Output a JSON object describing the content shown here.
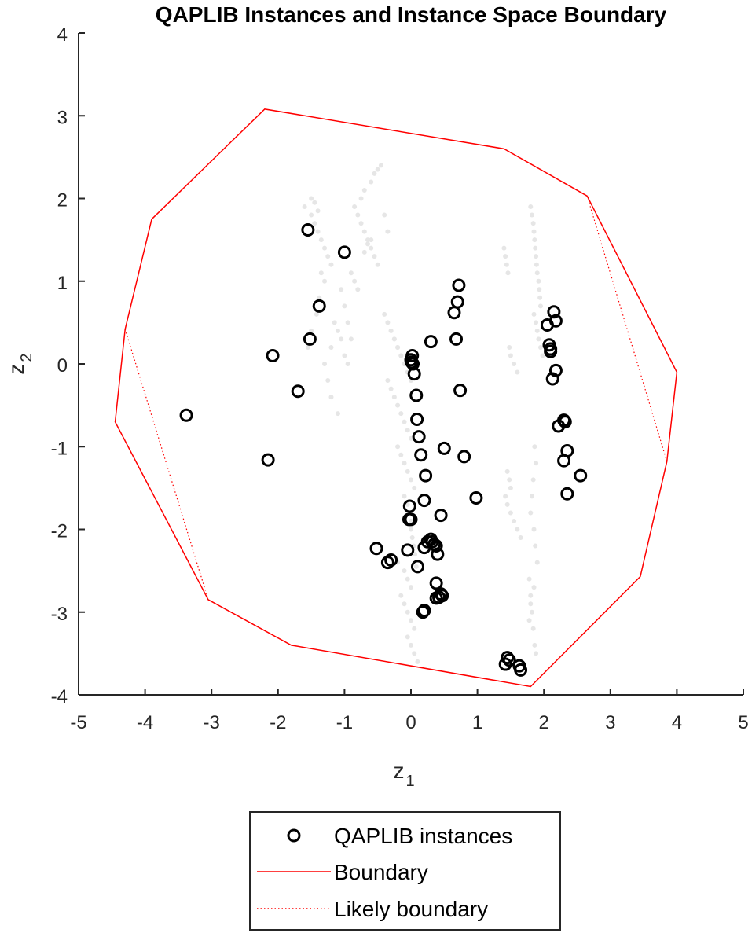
{
  "chart_data": {
    "type": "scatter",
    "title": "QAPLIB Instances and Instance Space Boundary",
    "xlabel": "z",
    "xlabel_sub": "1",
    "ylabel": "z",
    "ylabel_sub": "2",
    "xlim": [
      -5,
      5
    ],
    "ylim": [
      -4,
      4
    ],
    "xticks": [
      "-5",
      "-4",
      "-3",
      "-2",
      "-1",
      "0",
      "1",
      "2",
      "3",
      "4",
      "5"
    ],
    "yticks": [
      "-4",
      "-3",
      "-2",
      "-1",
      "0",
      "1",
      "2",
      "3",
      "4"
    ],
    "grid": false,
    "legend_position": "bottom-outside",
    "legend": [
      {
        "label": "QAPLIB instances",
        "marker": "circle",
        "color": "#000000"
      },
      {
        "label": "Boundary",
        "style": "solid",
        "color": "#ff0000"
      },
      {
        "label": "Likely boundary",
        "style": "dotted",
        "color": "#ff0000"
      }
    ],
    "background_points": {
      "color": "#e6e6e6",
      "x": [
        -1.6,
        -1.5,
        -1.45,
        -1.4,
        -1.35,
        -1.3,
        -1.25,
        -1.2,
        -1.4,
        -1.45,
        -1.5,
        -1.35,
        -1.3,
        -1.38,
        -1.42,
        -1.5,
        -1.55,
        -1.3,
        -1.25,
        -1.2,
        -1.1,
        -1.05,
        -1.0,
        -0.95,
        -0.9,
        -0.85,
        -0.8,
        -0.75,
        -0.7,
        -0.65,
        -0.6,
        -0.55,
        -0.5,
        -0.9,
        -0.85,
        -0.8,
        -0.75,
        -0.7,
        -0.6,
        -0.55,
        -0.5,
        -0.45,
        -0.4,
        -0.35,
        -0.6,
        -0.65,
        -0.7,
        -1.15,
        -1.1,
        -1.05,
        -1.2,
        -1.0,
        -0.95,
        -0.4,
        -0.35,
        -0.3,
        -0.25,
        -0.2,
        -0.15,
        -0.1,
        -0.05,
        0.0,
        -0.3,
        -0.25,
        -0.2,
        -0.15,
        -0.1,
        -0.05,
        -0.35,
        -0.3,
        -0.25,
        -0.2,
        -0.15,
        -0.1,
        -0.05,
        0.0,
        -0.2,
        -0.15,
        -0.1,
        -0.05,
        0.0,
        0.05,
        -0.1,
        -0.05,
        0.0,
        -0.2,
        -0.1,
        -0.05,
        0.0,
        -0.15,
        -0.1,
        -0.05,
        0.0,
        0.05,
        -0.05,
        0.0,
        0.05,
        0.1,
        0.0,
        0.0,
        0.02,
        0.04,
        0.06,
        0.08,
        1.4,
        1.42,
        1.44,
        1.46,
        1.48,
        1.5,
        1.55,
        1.6,
        1.45,
        1.48,
        1.5,
        1.42,
        1.45,
        1.5,
        1.55,
        1.6,
        1.65,
        1.8,
        1.82,
        1.84,
        1.85,
        1.86,
        1.87,
        1.88,
        1.89,
        1.9,
        1.92,
        1.93,
        1.94,
        1.95,
        1.85,
        1.88,
        1.9,
        1.92,
        1.95,
        1.98,
        1.86,
        1.88,
        1.84,
        1.82,
        1.8,
        1.85,
        1.87,
        1.9,
        1.78,
        1.8,
        1.82,
        1.84,
        1.86,
        1.88,
        1.85,
        1.8,
        1.78
      ],
      "y": [
        1.9,
        1.8,
        1.7,
        1.6,
        1.5,
        1.4,
        1.3,
        1.2,
        1.85,
        1.95,
        2.0,
        1.1,
        1.0,
        0.8,
        0.6,
        0.4,
        0.2,
        0.0,
        -0.2,
        -0.4,
        -0.6,
        0.9,
        0.7,
        0.5,
        0.3,
        1.9,
        1.8,
        1.7,
        1.6,
        1.5,
        1.4,
        1.3,
        1.2,
        1.1,
        1.0,
        0.9,
        2.0,
        2.1,
        2.2,
        2.3,
        2.35,
        2.4,
        1.8,
        1.6,
        1.5,
        1.45,
        1.35,
        0.5,
        0.4,
        0.3,
        0.2,
        0.1,
        0.0,
        0.6,
        0.5,
        0.4,
        0.3,
        0.2,
        0.1,
        0.0,
        -0.1,
        -0.2,
        0.4,
        0.3,
        0.2,
        0.1,
        0.0,
        -0.1,
        -0.2,
        -0.3,
        -0.4,
        -0.5,
        -0.6,
        -0.7,
        -0.8,
        -0.9,
        -1.0,
        -1.1,
        -1.2,
        -1.3,
        -1.4,
        -1.5,
        -1.6,
        -1.7,
        -1.8,
        -2.4,
        -2.5,
        -2.6,
        -2.7,
        -2.8,
        -2.9,
        -3.0,
        -3.1,
        -3.2,
        -3.3,
        -3.4,
        -3.5,
        -3.6,
        -1.9,
        -2.0,
        -2.1,
        -2.2,
        -2.3,
        -2.45,
        1.4,
        1.3,
        1.2,
        1.1,
        0.2,
        0.1,
        0.0,
        -0.1,
        -1.3,
        -1.4,
        -1.5,
        -1.6,
        -1.7,
        -1.8,
        -1.9,
        -2.0,
        -2.1,
        1.9,
        1.8,
        1.7,
        1.6,
        1.5,
        1.4,
        1.3,
        1.2,
        1.1,
        1.0,
        0.9,
        0.8,
        0.7,
        0.6,
        0.5,
        0.4,
        0.3,
        0.2,
        0.1,
        -1.0,
        -1.2,
        -1.4,
        -1.6,
        -1.8,
        -2.0,
        -2.2,
        -2.4,
        -2.6,
        -2.8,
        -3.0,
        -3.2,
        -3.4,
        -3.5,
        -2.7,
        -2.9,
        -3.1
      ]
    },
    "series": [
      {
        "name": "QAPLIB instances",
        "x": [
          -1.55,
          -1.0,
          -1.38,
          -1.52,
          -2.08,
          -1.7,
          -3.38,
          -2.15,
          0.72,
          0.7,
          0.65,
          0.68,
          0.3,
          0.02,
          0.0,
          0.01,
          0.03,
          0.05,
          0.08,
          0.09,
          0.12,
          0.15,
          0.22,
          0.2,
          0.5,
          0.8,
          0.98,
          0.45,
          0.74,
          -0.02,
          -0.03,
          0.0,
          -0.05,
          0.3,
          0.32,
          0.35,
          0.38,
          0.4,
          0.2,
          0.25,
          0.38,
          0.1,
          -0.52,
          -0.35,
          -0.3,
          0.45,
          0.47,
          0.42,
          0.38,
          0.18,
          0.2,
          2.15,
          2.18,
          2.05,
          2.08,
          2.1,
          2.1,
          2.18,
          2.13,
          2.3,
          2.32,
          2.22,
          2.35,
          2.3,
          2.55,
          2.35,
          1.45,
          1.48,
          1.42,
          1.63,
          1.65
        ],
        "y": [
          1.62,
          1.35,
          0.7,
          0.3,
          0.1,
          -0.33,
          -0.62,
          -1.16,
          0.95,
          0.75,
          0.62,
          0.3,
          0.27,
          0.1,
          0.05,
          0.02,
          0.0,
          -0.12,
          -0.38,
          -0.67,
          -0.88,
          -1.1,
          -1.35,
          -1.65,
          -1.02,
          -1.12,
          -1.62,
          -1.83,
          -0.32,
          -1.72,
          -1.88,
          -1.88,
          -2.25,
          -2.12,
          -2.15,
          -2.18,
          -2.2,
          -2.3,
          -2.22,
          -2.15,
          -2.65,
          -2.45,
          -2.23,
          -2.4,
          -2.37,
          -2.78,
          -2.8,
          -2.82,
          -2.83,
          -3.0,
          -2.98,
          0.63,
          0.52,
          0.47,
          0.23,
          0.18,
          0.15,
          -0.08,
          -0.18,
          -0.68,
          -0.7,
          -0.75,
          -1.05,
          -1.17,
          -1.35,
          -1.57,
          -3.55,
          -3.58,
          -3.63,
          -3.65,
          -3.7
        ]
      },
      {
        "name": "Boundary",
        "x": [
          -4.3,
          -3.9,
          -2.2,
          1.4,
          2.65,
          4.0,
          3.85,
          3.45,
          1.8,
          -1.8,
          -3.05,
          -4.45,
          -4.3
        ],
        "y": [
          0.42,
          1.75,
          3.08,
          2.6,
          2.03,
          -0.1,
          -1.18,
          -2.57,
          -3.9,
          -3.4,
          -2.85,
          -0.7,
          0.42
        ]
      },
      {
        "name": "Likely boundary",
        "segments": [
          {
            "x": [
              -4.3,
              -3.05
            ],
            "y": [
              0.42,
              -2.85
            ]
          },
          {
            "x": [
              2.65,
              3.85
            ],
            "y": [
              2.03,
              -1.18
            ]
          }
        ]
      }
    ]
  }
}
